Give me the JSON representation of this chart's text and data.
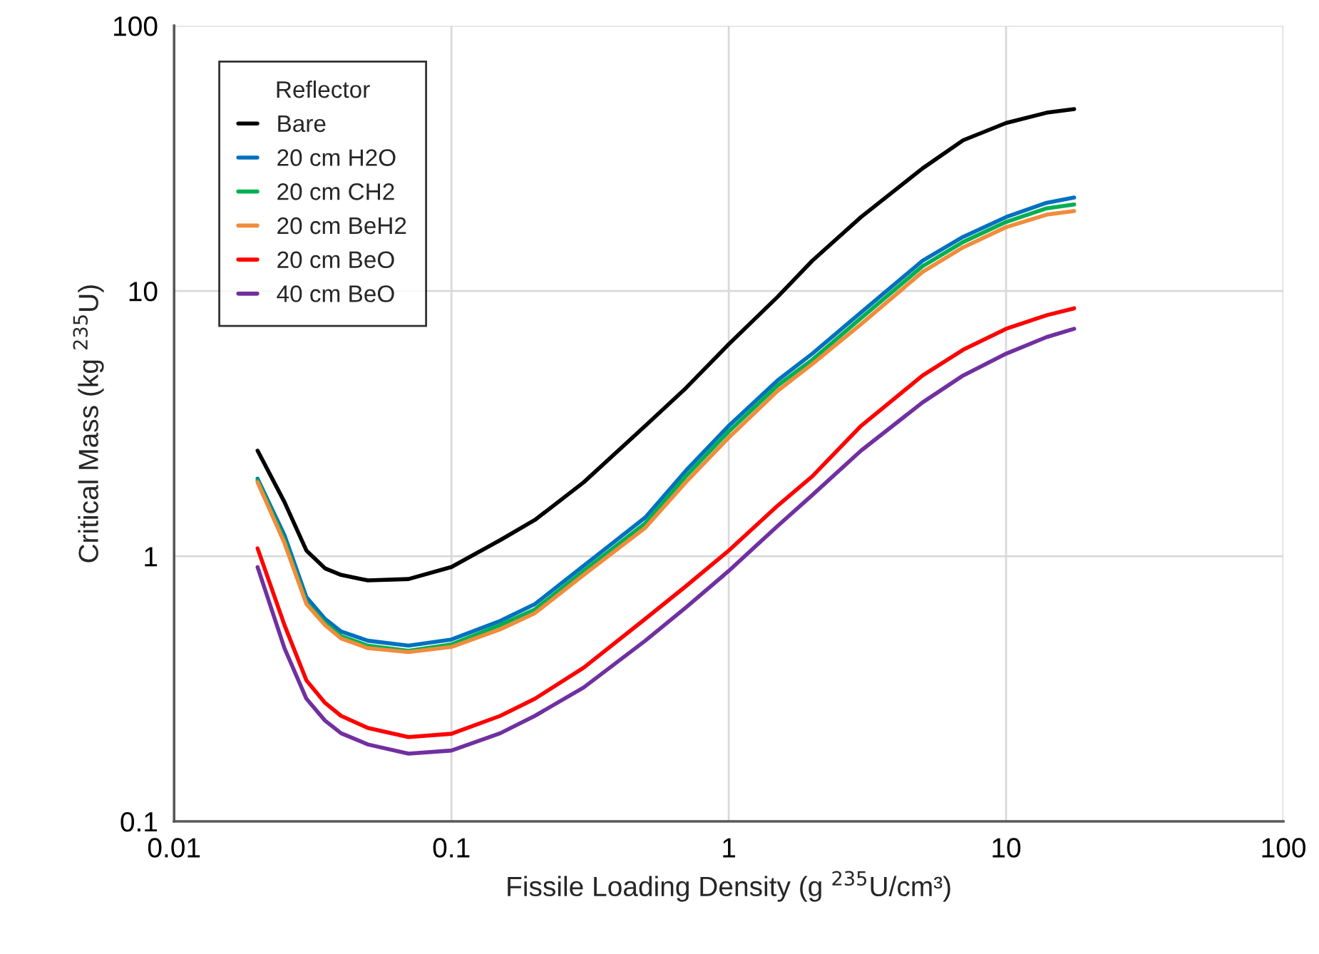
{
  "chart_data": {
    "type": "line",
    "xlabel": "Fissile Loading Density (g $^{235}$U/cm³)",
    "ylabel": "Critical Mass (kg $^{235}$U)",
    "legend_title": "Reflector",
    "legend": "top left",
    "grid": true,
    "log": "xy",
    "x": [
      0.02,
      0.025,
      0.03,
      0.035,
      0.04,
      0.05,
      0.07,
      0.1,
      0.15,
      0.2,
      0.3,
      0.5,
      0.7,
      1,
      1.5,
      2,
      3,
      5,
      7,
      10,
      14,
      17.6
    ],
    "xlim": [
      0.01,
      100
    ],
    "xticks": [
      0.01,
      0.1,
      1,
      10,
      100
    ],
    "ylim": [
      0.1,
      100
    ],
    "yticks": [
      0.1,
      1,
      10,
      100
    ],
    "series": [
      {
        "name": "Bare",
        "color": "#000000",
        "values": [
          2.5,
          1.6,
          1.05,
          0.9,
          0.85,
          0.81,
          0.82,
          0.91,
          1.15,
          1.37,
          1.9,
          3.1,
          4.3,
          6.3,
          9.5,
          13,
          19,
          29,
          37,
          43,
          47,
          48.5
        ]
      },
      {
        "name": "20 cm H2O",
        "color": "#0070c0",
        "values": [
          1.96,
          1.2,
          0.7,
          0.58,
          0.52,
          0.48,
          0.46,
          0.485,
          0.57,
          0.66,
          0.92,
          1.4,
          2.1,
          3.1,
          4.6,
          5.8,
          8.3,
          13,
          16,
          19,
          21.5,
          22.5
        ]
      },
      {
        "name": "20 cm CH2",
        "color": "#00b050",
        "values": [
          1.93,
          1.15,
          0.67,
          0.56,
          0.5,
          0.46,
          0.44,
          0.465,
          0.55,
          0.63,
          0.88,
          1.33,
          2.0,
          2.95,
          4.4,
          5.5,
          7.9,
          12.4,
          15.3,
          18.2,
          20.5,
          21.2
        ]
      },
      {
        "name": "20 cm BeH2",
        "color": "#f08c3c",
        "values": [
          1.9,
          1.12,
          0.66,
          0.55,
          0.49,
          0.45,
          0.435,
          0.455,
          0.53,
          0.61,
          0.85,
          1.28,
          1.9,
          2.8,
          4.2,
          5.3,
          7.5,
          11.8,
          14.6,
          17.4,
          19.4,
          20
        ]
      },
      {
        "name": "20 cm BeO",
        "color": "#ff0000",
        "values": [
          1.07,
          0.55,
          0.34,
          0.28,
          0.25,
          0.225,
          0.208,
          0.214,
          0.25,
          0.29,
          0.38,
          0.58,
          0.77,
          1.05,
          1.55,
          2.0,
          3.1,
          4.8,
          6.0,
          7.2,
          8.1,
          8.6
        ]
      },
      {
        "name": "40 cm BeO",
        "color": "#7030a0",
        "values": [
          0.91,
          0.45,
          0.29,
          0.24,
          0.215,
          0.195,
          0.18,
          0.185,
          0.215,
          0.25,
          0.32,
          0.48,
          0.64,
          0.88,
          1.3,
          1.7,
          2.5,
          3.8,
          4.8,
          5.8,
          6.7,
          7.2
        ]
      }
    ]
  }
}
